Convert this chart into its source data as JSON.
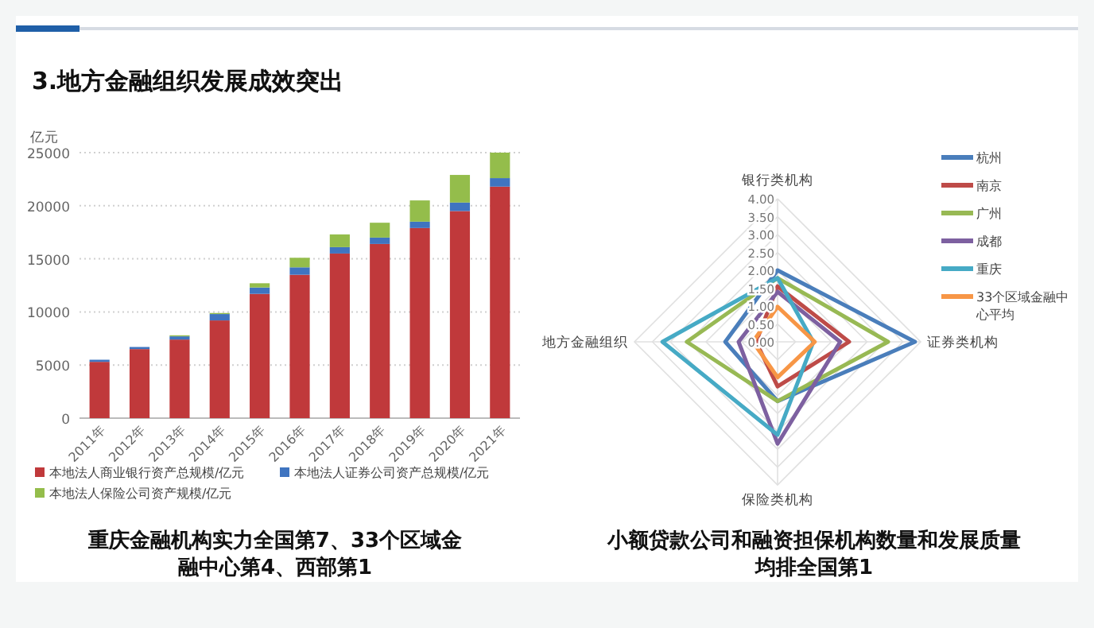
{
  "chart_data": [
    {
      "type": "bar",
      "title": "3.地方金融组织发展成效突出",
      "ylabel": "亿元",
      "stacked": true,
      "grid": "y",
      "legend": "bottom",
      "categories": [
        "2011年",
        "2012年",
        "2013年",
        "2014年",
        "2015年",
        "2016年",
        "2017年",
        "2018年",
        "2019年",
        "2020年",
        "2021年"
      ],
      "ylim": [
        0,
        25000
      ],
      "yticks": [
        0,
        5000,
        10000,
        15000,
        20000,
        25000
      ],
      "series": [
        {
          "name": "本地法人商业银行资产总规模/亿元",
          "color": "#c0393b",
          "values": [
            5300,
            6500,
            7400,
            9200,
            11700,
            13500,
            15500,
            16400,
            17900,
            19500,
            21800
          ]
        },
        {
          "name": "本地法人证券公司资产总规模/亿元",
          "color": "#3f74c0",
          "values": [
            200,
            200,
            300,
            600,
            600,
            700,
            600,
            600,
            600,
            800,
            800
          ]
        },
        {
          "name": "本地法人保险公司资产规模/亿元",
          "color": "#94bd4b",
          "values": [
            0,
            0,
            100,
            100,
            400,
            900,
            1200,
            1400,
            2000,
            2600,
            2400
          ]
        }
      ],
      "annotations": [
        "重庆金融机构实力全国第7、33个区域金融中心第4、西部第1"
      ]
    },
    {
      "type": "radar",
      "legend": "right",
      "categories": [
        "银行类机构",
        "证券类机构",
        "保险类机构",
        "地方金融组织"
      ],
      "ylim": [
        0,
        4
      ],
      "yticks": [
        {
          "value": 0,
          "label": "0.00"
        },
        {
          "value": 0.5,
          "label": "0.50"
        },
        {
          "value": 1,
          "label": "1.00"
        },
        {
          "value": 1.5,
          "label": "1.50"
        },
        {
          "value": 2,
          "label": "2.00"
        },
        {
          "value": 2.5,
          "label": "2.50"
        },
        {
          "value": 3,
          "label": "3.00"
        },
        {
          "value": 3.5,
          "label": "3.50"
        },
        {
          "value": 4,
          "label": "4.00"
        }
      ],
      "series": [
        {
          "name": "杭州",
          "color": "#4a7ebb",
          "values": [
            2.0,
            3.84,
            1.66,
            1.46
          ]
        },
        {
          "name": "南京",
          "color": "#be4b48",
          "values": [
            1.55,
            2.0,
            1.25,
            0.6
          ]
        },
        {
          "name": "广州",
          "color": "#98b954",
          "values": [
            1.78,
            3.09,
            1.66,
            2.54
          ]
        },
        {
          "name": "成都",
          "color": "#7d60a0",
          "values": [
            1.4,
            1.75,
            2.85,
            1.09
          ]
        },
        {
          "name": "重庆",
          "color": "#46aac5",
          "values": [
            1.78,
            1.0,
            2.6,
            3.22
          ]
        },
        {
          "name": "33个区域金融中心平均",
          "color": "#f79646",
          "values": [
            0.98,
            1.04,
            0.99,
            0.69
          ]
        }
      ],
      "annotations": [
        "小额贷款公司和融资担保机构数量和发展质量均排全国第1"
      ]
    }
  ]
}
